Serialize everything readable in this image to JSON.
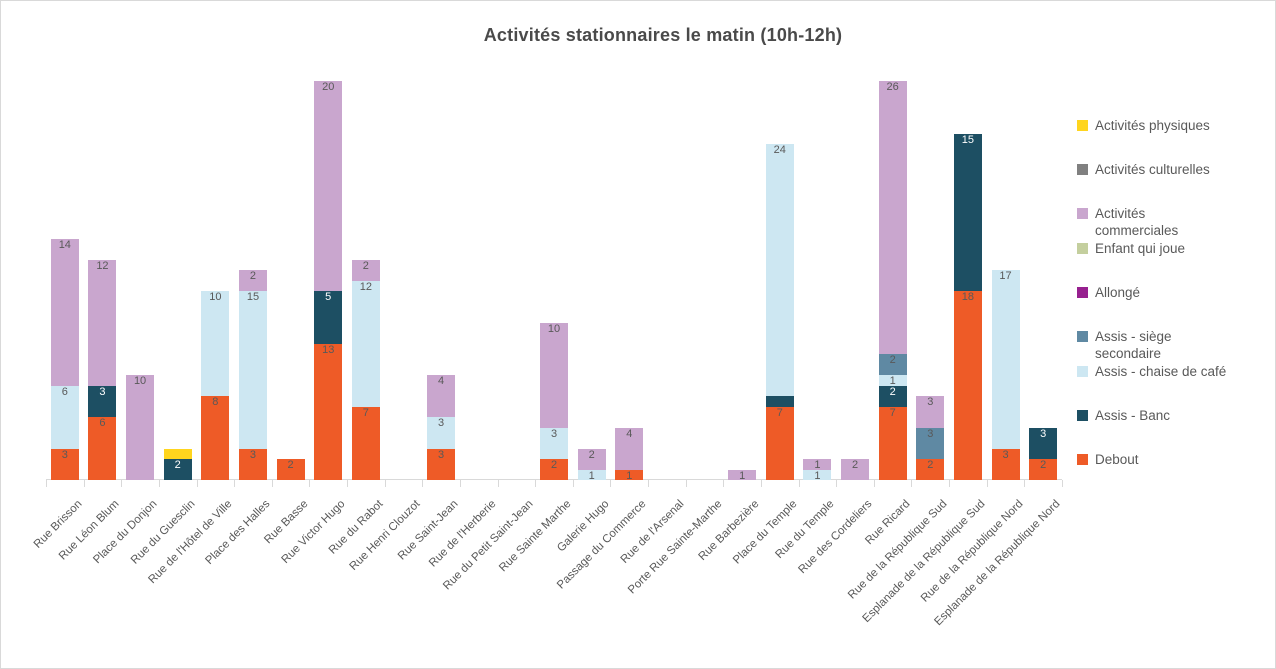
{
  "title": "Activités stationnaires le matin (10h-12h)",
  "chart_data": {
    "type": "bar",
    "stacked": true,
    "orientation": "vertical",
    "title": "Activités stationnaires le matin (10h-12h)",
    "xlabel": "",
    "ylabel": "",
    "y_axis_visible": false,
    "grid": false,
    "legend_position": "right",
    "ylim": [
      0,
      40
    ],
    "categories": [
      "Rue Brisson",
      "Rue Léon Blum",
      "Place du Donjon",
      "Rue du Guesclin",
      "Rue de l'Hôtel de Ville",
      "Place des Halles",
      "Rue Basse",
      "Rue Victor Hugo",
      "Rue du Rabot",
      "Rue Henri Clouzot",
      "Rue Saint-Jean",
      "Rue de l'Herberie",
      "Rue du Petit Saint-Jean",
      "Rue Sainte Marthe",
      "Galerie Hugo",
      "Passage du Commerce",
      "Rue de l'Arsenal",
      "Porte Rue Sainte-Marthe",
      "Rue Barbezière",
      "Place du Temple",
      "Rue du Temple",
      "Rue des Cordeliers",
      "Rue Ricard",
      "Rue de la République Sud",
      "Esplanade de la République Sud",
      "Rue de la République Nord",
      "Esplanade de la République Nord"
    ],
    "series": [
      {
        "name": "Debout",
        "color": "#EE5B27",
        "label_color": "#595959",
        "values": [
          3,
          6,
          0,
          0,
          8,
          3,
          2,
          13,
          7,
          0,
          3,
          0,
          0,
          2,
          0,
          1,
          0,
          0,
          0,
          7,
          0,
          0,
          7,
          2,
          18,
          3,
          2
        ]
      },
      {
        "name": "Assis - Banc",
        "color": "#1D4F63",
        "label_color": "#FFFFFF",
        "values": [
          0,
          3,
          0,
          2,
          0,
          0,
          0,
          5,
          0,
          0,
          0,
          0,
          0,
          0,
          0,
          0,
          0,
          0,
          0,
          1,
          0,
          0,
          2,
          0,
          15,
          0,
          3
        ]
      },
      {
        "name": "Assis - chaise de café",
        "color": "#CDE7F2",
        "label_color": "#595959",
        "values": [
          6,
          0,
          0,
          0,
          10,
          15,
          0,
          0,
          12,
          0,
          3,
          0,
          0,
          3,
          1,
          0,
          0,
          0,
          0,
          24,
          1,
          0,
          1,
          0,
          0,
          17,
          0
        ]
      },
      {
        "name": "Assis - siège secondaire",
        "color": "#5F89A3",
        "label_color": "#595959",
        "values": [
          0,
          0,
          0,
          0,
          0,
          0,
          0,
          0,
          0,
          0,
          0,
          0,
          0,
          0,
          0,
          0,
          0,
          0,
          0,
          0,
          0,
          0,
          2,
          3,
          0,
          0,
          0
        ]
      },
      {
        "name": "Allongé",
        "color": "#97208F",
        "label_color": "#595959",
        "values": [
          0,
          0,
          0,
          0,
          0,
          0,
          0,
          0,
          0,
          0,
          0,
          0,
          0,
          0,
          0,
          0,
          0,
          0,
          0,
          0,
          0,
          0,
          0,
          0,
          0,
          0,
          0
        ]
      },
      {
        "name": "Enfant qui joue",
        "color": "#C4CF9E",
        "label_color": "#595959",
        "values": [
          0,
          0,
          0,
          0,
          0,
          0,
          0,
          0,
          0,
          0,
          0,
          0,
          0,
          0,
          0,
          0,
          0,
          0,
          0,
          0,
          0,
          0,
          0,
          0,
          0,
          0,
          0
        ]
      },
      {
        "name": "Activités commerciales",
        "color": "#C9A6CE",
        "label_color": "#595959",
        "values": [
          14,
          12,
          10,
          0,
          0,
          2,
          0,
          20,
          2,
          0,
          4,
          0,
          0,
          10,
          2,
          4,
          0,
          0,
          1,
          0,
          1,
          2,
          26,
          3,
          0,
          0,
          0
        ]
      },
      {
        "name": "Activités culturelles",
        "color": "#808080",
        "label_color": "#595959",
        "values": [
          0,
          0,
          0,
          0,
          0,
          0,
          0,
          0,
          0,
          0,
          0,
          0,
          0,
          0,
          0,
          0,
          0,
          0,
          0,
          0,
          0,
          0,
          0,
          0,
          0,
          0,
          0
        ]
      },
      {
        "name": "Activités physiques",
        "color": "#FFD51E",
        "label_color": "#595959",
        "values": [
          0,
          0,
          0,
          1,
          0,
          0,
          0,
          0,
          0,
          0,
          0,
          0,
          0,
          0,
          0,
          0,
          0,
          0,
          0,
          0,
          0,
          0,
          0,
          0,
          0,
          0,
          0
        ]
      }
    ],
    "label_hidden": [
      [
        3,
        "Activités physiques"
      ],
      [
        19,
        "Assis - Banc"
      ]
    ],
    "legend_two_line": [
      "Activités commerciales",
      "Assis - siège secondaire"
    ]
  },
  "layout_colors": {
    "axis": "#D9D9D9",
    "label_text": "#595959",
    "title_text": "#4A4A4A"
  }
}
